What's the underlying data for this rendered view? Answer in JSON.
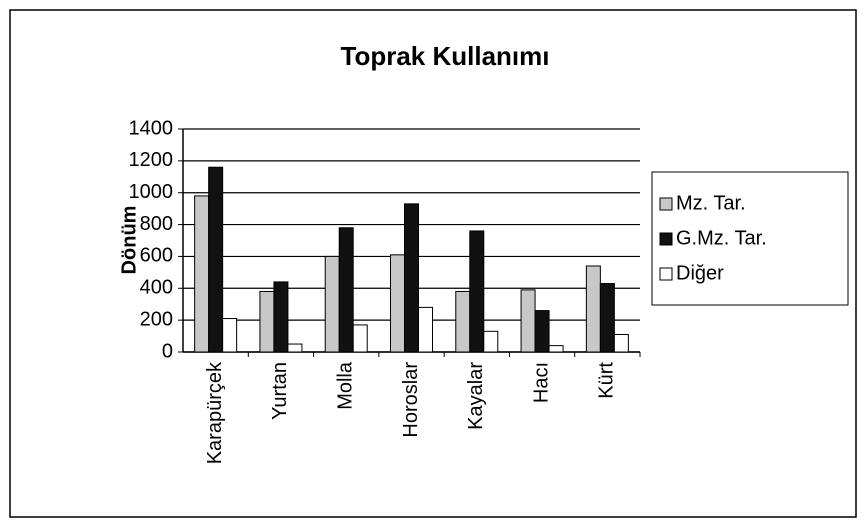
{
  "chart_data": {
    "type": "bar",
    "title": "Toprak Kullanımı",
    "y_label": "Dönüm",
    "categories": [
      "Karapürçek",
      "Yurtan",
      "Molla",
      "Horoslar",
      "Kayalar",
      "Hacı",
      "Kürt"
    ],
    "series": [
      {
        "name": "Mz. Tar.",
        "color": "#c8c8c8",
        "values": [
          980,
          380,
          600,
          610,
          380,
          390,
          540
        ]
      },
      {
        "name": "G.Mz. Tar.",
        "color": "#111111",
        "values": [
          1160,
          440,
          780,
          930,
          760,
          260,
          430
        ]
      },
      {
        "name": "Diğer",
        "color": "#ffffff",
        "values": [
          210,
          50,
          170,
          280,
          130,
          40,
          110
        ]
      }
    ],
    "ylim": [
      0,
      1400
    ],
    "yticks": [
      0,
      200,
      400,
      600,
      800,
      1000,
      1200,
      1400
    ],
    "grid": true,
    "legend": "right"
  }
}
